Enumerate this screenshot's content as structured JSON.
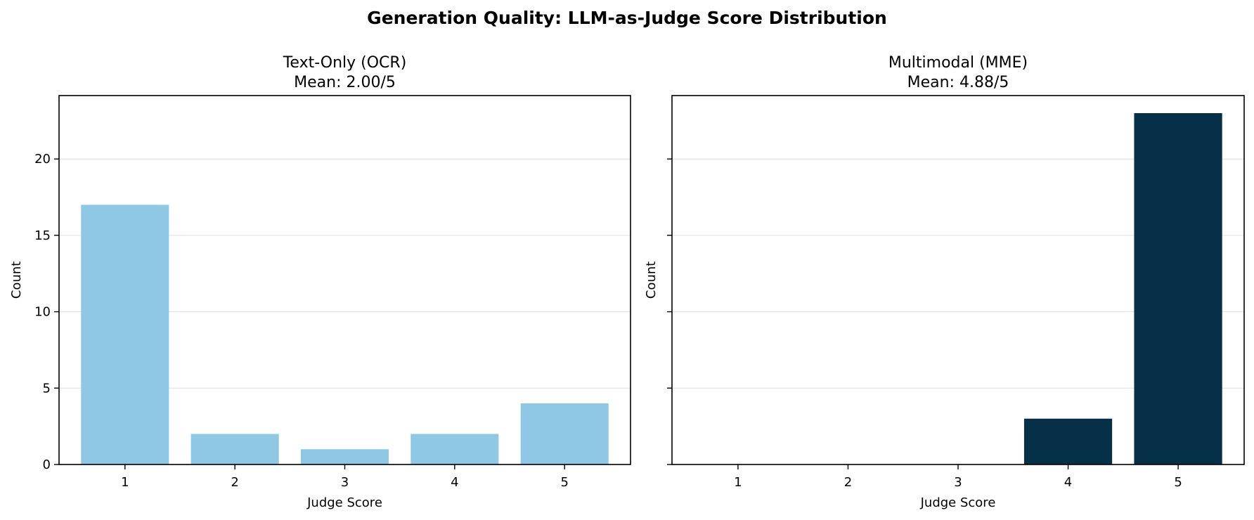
{
  "figure": {
    "title": "Generation Quality: LLM-as-Judge Score Distribution"
  },
  "chart_data": [
    {
      "type": "bar",
      "title_line1": "Text-Only (OCR)",
      "title_line2": "Mean: 2.00/5",
      "categories": [
        "1",
        "2",
        "3",
        "4",
        "5"
      ],
      "values": [
        17,
        2,
        1,
        2,
        4
      ],
      "color": "#8ec8e4",
      "xlabel": "Judge Score",
      "ylabel": "Count",
      "ylim": [
        0,
        24.15
      ],
      "yticks": [
        0,
        5,
        10,
        15,
        20
      ],
      "ytick_labels_shown": true,
      "grid": "y"
    },
    {
      "type": "bar",
      "title_line1": "Multimodal (MME)",
      "title_line2": "Mean: 4.88/5",
      "categories": [
        "1",
        "2",
        "3",
        "4",
        "5"
      ],
      "values": [
        0,
        0,
        0,
        3,
        23
      ],
      "color": "#053047",
      "xlabel": "Judge Score",
      "ylabel": "Count",
      "ylim": [
        0,
        24.15
      ],
      "yticks": [
        0,
        5,
        10,
        15,
        20
      ],
      "ytick_labels_shown": false,
      "grid": "y"
    }
  ]
}
